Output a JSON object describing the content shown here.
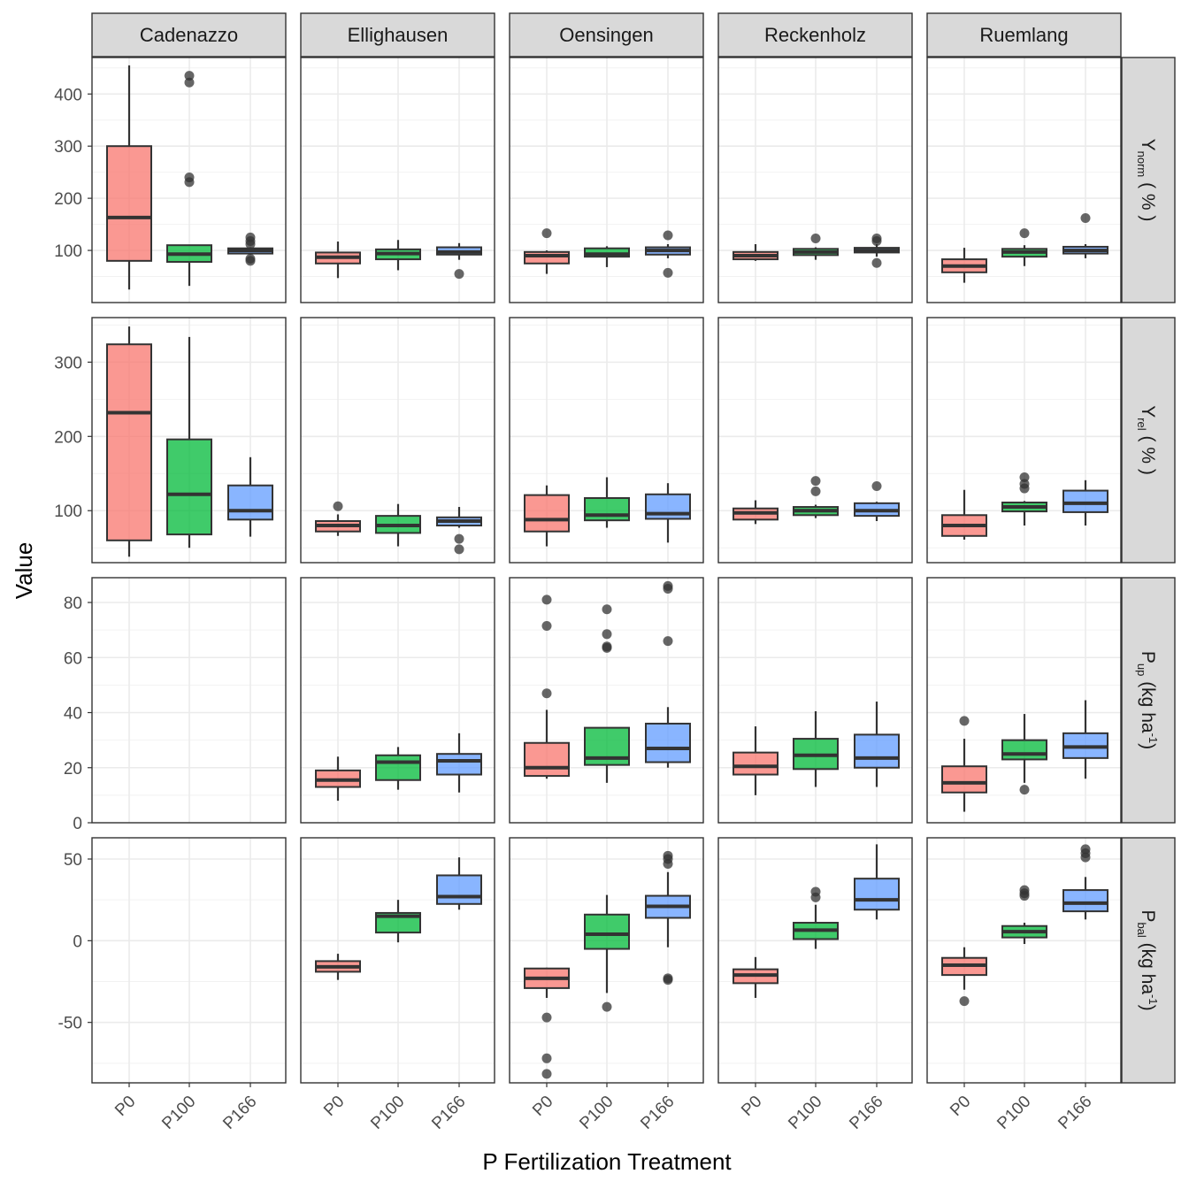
{
  "chart_data": {
    "type": "boxplot",
    "xlabel": "P Fertilization Treatment",
    "ylabel": "Value",
    "grid": true,
    "legend": "none",
    "colors": {
      "P0": "#F8766D",
      "P100": "#00BA38",
      "P166": "#619CFF"
    },
    "categories": [
      "P0",
      "P100",
      "P166"
    ],
    "sites": [
      "Cadenazzo",
      "Ellighausen",
      "Oensingen",
      "Reckenholz",
      "Ruemlang"
    ],
    "rows": [
      {
        "label_main": "Y",
        "label_sub": "norm",
        "label_unit": "( % )",
        "label_sup": "",
        "ylim": [
          0,
          470
        ],
        "yticks": [
          100,
          200,
          300,
          400
        ],
        "yminor": [
          50,
          150,
          250,
          350,
          450
        ],
        "panels": [
          {
            "site": "Cadenazzo",
            "boxes": [
              {
                "cat": "P0",
                "min": 25,
                "q1": 80,
                "median": 163,
                "q3": 300,
                "max": 455,
                "outliers": []
              },
              {
                "cat": "P100",
                "min": 32,
                "q1": 78,
                "median": 93,
                "q3": 110,
                "max": 110,
                "outliers": [
                  435,
                  422,
                  240,
                  231
                ]
              },
              {
                "cat": "P166",
                "min": 92,
                "q1": 94,
                "median": 100,
                "q3": 104,
                "max": 106,
                "outliers": [
                  125,
                  118,
                  112,
                  84,
                  80
                ]
              }
            ]
          },
          {
            "site": "Ellighausen",
            "boxes": [
              {
                "cat": "P0",
                "min": 47,
                "q1": 75,
                "median": 87,
                "q3": 96,
                "max": 117,
                "outliers": []
              },
              {
                "cat": "P100",
                "min": 62,
                "q1": 83,
                "median": 94,
                "q3": 102,
                "max": 120,
                "outliers": []
              },
              {
                "cat": "P166",
                "min": 82,
                "q1": 92,
                "median": 97,
                "q3": 106,
                "max": 114,
                "outliers": [
                  55
                ]
              }
            ]
          },
          {
            "site": "Oensingen",
            "boxes": [
              {
                "cat": "P0",
                "min": 55,
                "q1": 75,
                "median": 90,
                "q3": 97,
                "max": 100,
                "outliers": [
                  133
                ]
              },
              {
                "cat": "P100",
                "min": 68,
                "q1": 88,
                "median": 93,
                "q3": 104,
                "max": 108,
                "outliers": []
              },
              {
                "cat": "P166",
                "min": 85,
                "q1": 92,
                "median": 100,
                "q3": 106,
                "max": 112,
                "outliers": [
                  129,
                  57
                ]
              }
            ]
          },
          {
            "site": "Reckenholz",
            "boxes": [
              {
                "cat": "P0",
                "min": 80,
                "q1": 83,
                "median": 90,
                "q3": 97,
                "max": 112,
                "outliers": []
              },
              {
                "cat": "P100",
                "min": 82,
                "q1": 91,
                "median": 97,
                "q3": 103,
                "max": 106,
                "outliers": [
                  123
                ]
              },
              {
                "cat": "P166",
                "min": 88,
                "q1": 96,
                "median": 100,
                "q3": 105,
                "max": 112,
                "outliers": [
                  123,
                  118,
                  76
                ]
              }
            ]
          },
          {
            "site": "Ruemlang",
            "boxes": [
              {
                "cat": "P0",
                "min": 38,
                "q1": 58,
                "median": 70,
                "q3": 83,
                "max": 105,
                "outliers": []
              },
              {
                "cat": "P100",
                "min": 70,
                "q1": 88,
                "median": 97,
                "q3": 103,
                "max": 110,
                "outliers": [
                  133
                ]
              },
              {
                "cat": "P166",
                "min": 85,
                "q1": 94,
                "median": 100,
                "q3": 107,
                "max": 112,
                "outliers": [
                  162
                ]
              }
            ]
          }
        ]
      },
      {
        "label_main": "Y",
        "label_sub": "rel",
        "label_unit": "( % )",
        "label_sup": "",
        "ylim": [
          30,
          360
        ],
        "yticks": [
          100,
          200,
          300
        ],
        "yminor": [
          50,
          150,
          250,
          350
        ],
        "panels": [
          {
            "site": "Cadenazzo",
            "boxes": [
              {
                "cat": "P0",
                "min": 38,
                "q1": 60,
                "median": 232,
                "q3": 324,
                "max": 348,
                "outliers": []
              },
              {
                "cat": "P100",
                "min": 50,
                "q1": 68,
                "median": 122,
                "q3": 196,
                "max": 334,
                "outliers": []
              },
              {
                "cat": "P166",
                "min": 65,
                "q1": 88,
                "median": 100,
                "q3": 134,
                "max": 172,
                "outliers": []
              }
            ]
          },
          {
            "site": "Ellighausen",
            "boxes": [
              {
                "cat": "P0",
                "min": 66,
                "q1": 72,
                "median": 80,
                "q3": 86,
                "max": 95,
                "outliers": [
                  106
                ]
              },
              {
                "cat": "P100",
                "min": 52,
                "q1": 70,
                "median": 80,
                "q3": 93,
                "max": 109,
                "outliers": []
              },
              {
                "cat": "P166",
                "min": 77,
                "q1": 80,
                "median": 86,
                "q3": 91,
                "max": 105,
                "outliers": [
                  62,
                  48
                ]
              }
            ]
          },
          {
            "site": "Oensingen",
            "boxes": [
              {
                "cat": "P0",
                "min": 52,
                "q1": 72,
                "median": 88,
                "q3": 121,
                "max": 134,
                "outliers": []
              },
              {
                "cat": "P100",
                "min": 77,
                "q1": 87,
                "median": 94,
                "q3": 117,
                "max": 145,
                "outliers": []
              },
              {
                "cat": "P166",
                "min": 57,
                "q1": 89,
                "median": 96,
                "q3": 122,
                "max": 137,
                "outliers": []
              }
            ]
          },
          {
            "site": "Reckenholz",
            "boxes": [
              {
                "cat": "P0",
                "min": 82,
                "q1": 88,
                "median": 97,
                "q3": 103,
                "max": 114,
                "outliers": []
              },
              {
                "cat": "P100",
                "min": 90,
                "q1": 94,
                "median": 100,
                "q3": 105,
                "max": 108,
                "outliers": [
                  140,
                  126
                ]
              },
              {
                "cat": "P166",
                "min": 86,
                "q1": 93,
                "median": 100,
                "q3": 110,
                "max": 112,
                "outliers": [
                  133
                ]
              }
            ]
          },
          {
            "site": "Ruemlang",
            "boxes": [
              {
                "cat": "P0",
                "min": 61,
                "q1": 66,
                "median": 80,
                "q3": 94,
                "max": 128,
                "outliers": []
              },
              {
                "cat": "P100",
                "min": 80,
                "q1": 99,
                "median": 105,
                "q3": 111,
                "max": 113,
                "outliers": [
                  145,
                  136,
                  130
                ]
              },
              {
                "cat": "P166",
                "min": 80,
                "q1": 98,
                "median": 110,
                "q3": 127,
                "max": 141,
                "outliers": []
              }
            ]
          }
        ]
      },
      {
        "label_main": "P",
        "label_sub": "up",
        "label_unit": " (kg ha",
        "label_sup": "-1",
        "ylim": [
          0,
          89
        ],
        "yticks": [
          0,
          20,
          40,
          60,
          80
        ],
        "yminor": [
          10,
          30,
          50,
          70
        ],
        "panels": [
          {
            "site": "Cadenazzo",
            "boxes": []
          },
          {
            "site": "Ellighausen",
            "boxes": [
              {
                "cat": "P0",
                "min": 8,
                "q1": 13,
                "median": 15.5,
                "q3": 19,
                "max": 24,
                "outliers": []
              },
              {
                "cat": "P100",
                "min": 12,
                "q1": 15.5,
                "median": 22,
                "q3": 24.5,
                "max": 27.5,
                "outliers": []
              },
              {
                "cat": "P166",
                "min": 11,
                "q1": 17.5,
                "median": 22.5,
                "q3": 25,
                "max": 32.5,
                "outliers": []
              }
            ]
          },
          {
            "site": "Oensingen",
            "boxes": [
              {
                "cat": "P0",
                "min": 16,
                "q1": 17,
                "median": 20,
                "q3": 29,
                "max": 41,
                "outliers": [
                  81,
                  71.5,
                  47
                ]
              },
              {
                "cat": "P100",
                "min": 14.5,
                "q1": 21,
                "median": 23.5,
                "q3": 34.5,
                "max": 34.5,
                "outliers": [
                  77.5,
                  68.5,
                  64,
                  63.5
                ]
              },
              {
                "cat": "P166",
                "min": 20,
                "q1": 22,
                "median": 27,
                "q3": 36,
                "max": 42,
                "outliers": [
                  86,
                  85,
                  66
                ]
              }
            ]
          },
          {
            "site": "Reckenholz",
            "boxes": [
              {
                "cat": "P0",
                "min": 10,
                "q1": 17.5,
                "median": 20.5,
                "q3": 25.5,
                "max": 35,
                "outliers": []
              },
              {
                "cat": "P100",
                "min": 13,
                "q1": 19.5,
                "median": 24.5,
                "q3": 30.5,
                "max": 40.5,
                "outliers": []
              },
              {
                "cat": "P166",
                "min": 13,
                "q1": 20,
                "median": 23.5,
                "q3": 32,
                "max": 44,
                "outliers": []
              }
            ]
          },
          {
            "site": "Ruemlang",
            "boxes": [
              {
                "cat": "P0",
                "min": 4,
                "q1": 11,
                "median": 14.5,
                "q3": 20.5,
                "max": 30.5,
                "outliers": [
                  37
                ]
              },
              {
                "cat": "P100",
                "min": 14.5,
                "q1": 23,
                "median": 25,
                "q3": 30,
                "max": 39.5,
                "outliers": [
                  12
                ]
              },
              {
                "cat": "P166",
                "min": 16,
                "q1": 23.5,
                "median": 27.5,
                "q3": 32.5,
                "max": 44.5,
                "outliers": []
              }
            ]
          }
        ]
      },
      {
        "label_main": "P",
        "label_sub": "bal",
        "label_unit": " (kg ha",
        "label_sup": "-1",
        "ylim": [
          -87,
          63
        ],
        "yticks": [
          -50,
          0,
          50
        ],
        "yminor": [
          -75,
          -25,
          25
        ],
        "panels": [
          {
            "site": "Cadenazzo",
            "boxes": []
          },
          {
            "site": "Ellighausen",
            "boxes": [
              {
                "cat": "P0",
                "min": -24,
                "q1": -19,
                "median": -16,
                "q3": -12.5,
                "max": -8,
                "outliers": []
              },
              {
                "cat": "P100",
                "min": -1,
                "q1": 5,
                "median": 15,
                "q3": 17,
                "max": 25,
                "outliers": []
              },
              {
                "cat": "P166",
                "min": 19,
                "q1": 22.5,
                "median": 27,
                "q3": 40,
                "max": 51,
                "outliers": []
              }
            ]
          },
          {
            "site": "Oensingen",
            "boxes": [
              {
                "cat": "P0",
                "min": -35,
                "q1": -29,
                "median": -23,
                "q3": -17,
                "max": -16.5,
                "outliers": [
                  -47,
                  -72,
                  -81.5
                ]
              },
              {
                "cat": "P100",
                "min": -32,
                "q1": -5,
                "median": 4,
                "q3": 16,
                "max": 28,
                "outliers": [
                  -40.5
                ]
              },
              {
                "cat": "P166",
                "min": -4,
                "q1": 14,
                "median": 21,
                "q3": 27.5,
                "max": 42,
                "outliers": [
                  52,
                  50,
                  47,
                  -23,
                  -24
                ]
              }
            ]
          },
          {
            "site": "Reckenholz",
            "boxes": [
              {
                "cat": "P0",
                "min": -35,
                "q1": -26,
                "median": -21,
                "q3": -17.5,
                "max": -10,
                "outliers": []
              },
              {
                "cat": "P100",
                "min": -5,
                "q1": 1,
                "median": 6.5,
                "q3": 11,
                "max": 22,
                "outliers": [
                  30,
                  26.5
                ]
              },
              {
                "cat": "P166",
                "min": 13,
                "q1": 19,
                "median": 25,
                "q3": 38,
                "max": 59,
                "outliers": []
              }
            ]
          },
          {
            "site": "Ruemlang",
            "boxes": [
              {
                "cat": "P0",
                "min": -30,
                "q1": -21,
                "median": -15,
                "q3": -10.5,
                "max": -4,
                "outliers": [
                  -37
                ]
              },
              {
                "cat": "P100",
                "min": -2,
                "q1": 2,
                "median": 5.5,
                "q3": 9,
                "max": 11,
                "outliers": [
                  31,
                  29,
                  27.5
                ]
              },
              {
                "cat": "P166",
                "min": 13,
                "q1": 18,
                "median": 23,
                "q3": 31,
                "max": 39,
                "outliers": [
                  56,
                  53.5,
                  51
                ]
              }
            ]
          }
        ]
      }
    ]
  }
}
